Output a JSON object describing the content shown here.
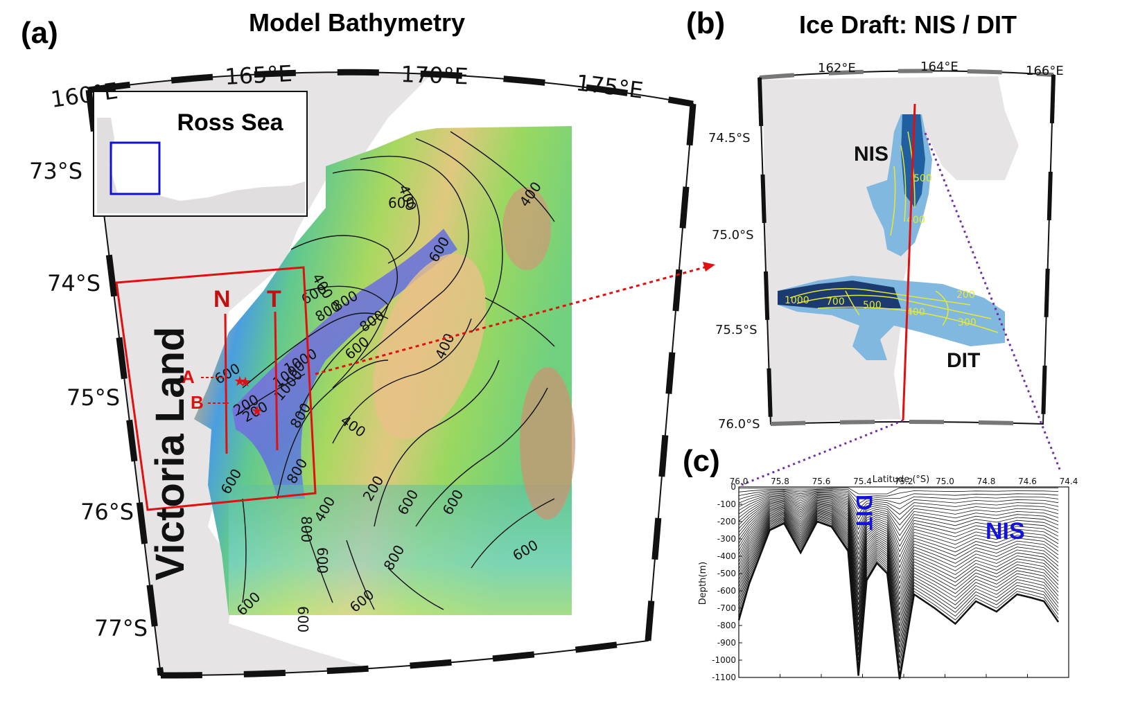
{
  "colors": {
    "land": "#e6e4e4",
    "frame_red": "#e01010",
    "inset_box_blue": "#1010d0",
    "connector_purple": "#7030a0",
    "contour_yellow": "#e8e830",
    "panel_label_blue": "#1414d8"
  },
  "panel_a": {
    "label": "(a)",
    "title": "Model Bathymetry",
    "lon_labels": [
      "160°E",
      "165°E",
      "170°E",
      "175°E"
    ],
    "lat_labels": [
      "73°S",
      "74°S",
      "75°S",
      "76°S",
      "77°S"
    ],
    "inset_title": "Ross Sea",
    "region_label": "Victoria Land",
    "section_labels": [
      "N",
      "T",
      "A",
      "B"
    ],
    "contour_labels": [
      "400",
      "600",
      "400",
      "600",
      "400",
      "600",
      "800",
      "800",
      "1000",
      "600",
      "400",
      "400",
      "1000",
      "1000",
      "800",
      "800",
      "600",
      "400",
      "200",
      "600",
      "600",
      "600",
      "800",
      "600",
      "800",
      "600",
      "600",
      "600",
      "800",
      "600",
      "200",
      "200"
    ]
  },
  "panel_b": {
    "label": "(b)",
    "title": "Ice Draft: NIS / DIT",
    "lon_labels": [
      "162°E",
      "164°E",
      "166°E"
    ],
    "lat_labels": [
      "74.5°S",
      "75.0°S",
      "75.5°S",
      "76.0°S"
    ],
    "shelf_labels": [
      "NIS",
      "DIT"
    ],
    "contour_labels": [
      "500",
      "400",
      "1000",
      "700",
      "500",
      "400",
      "300",
      "200"
    ]
  },
  "panel_c": {
    "label": "(c)",
    "xlabel": "Latitude (°S)",
    "ylabel": "Depth(m)",
    "x_ticks": [
      "76.0",
      "75.8",
      "75.6",
      "75.4",
      "75.2",
      "75.0",
      "74.8",
      "74.6",
      "74.4"
    ],
    "y_ticks": [
      "0",
      "-100",
      "-200",
      "-300",
      "-400",
      "-500",
      "-600",
      "-700",
      "-800",
      "-900",
      "-1000",
      "-1100"
    ],
    "shelf_labels": [
      "DIT",
      "NIS"
    ],
    "profile_lat": [
      76.0,
      75.95,
      75.85,
      75.78,
      75.7,
      75.62,
      75.55,
      75.47,
      75.42,
      75.38,
      75.33,
      75.28,
      75.22,
      75.15,
      75.05,
      74.95,
      74.85,
      74.75,
      74.65,
      74.58,
      74.52,
      74.45
    ],
    "profile_bottom": [
      -770,
      -560,
      -250,
      -210,
      -380,
      -200,
      -230,
      -370,
      -1090,
      -540,
      -440,
      -500,
      -1110,
      -620,
      -700,
      -790,
      -660,
      -720,
      -620,
      -640,
      -660,
      -780
    ]
  }
}
